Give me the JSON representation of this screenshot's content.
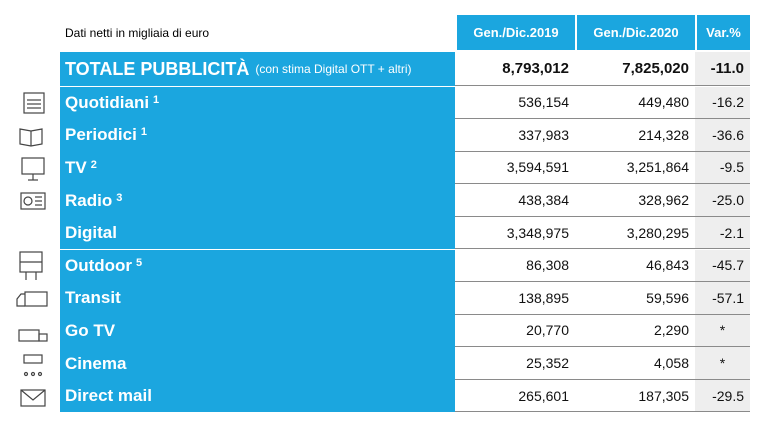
{
  "table": {
    "caption": "Dati netti in migliaia di euro",
    "columns": [
      "Gen./Dic.2019",
      "Gen./Dic.2020",
      "Var.%"
    ],
    "total": {
      "label": "TOTALE PUBBLICITÀ",
      "sublabel": "(con stima Digital OTT  + altri)",
      "values": [
        "8,793,012",
        "7,825,020",
        "-11.0"
      ]
    },
    "rows": [
      {
        "label": "Quotidiani",
        "note": "1",
        "values": [
          "536,154",
          "449,480",
          "-16.2"
        ]
      },
      {
        "label": "Periodici",
        "note": "1",
        "values": [
          "337,983",
          "214,328",
          "-36.6"
        ]
      },
      {
        "label": "TV",
        "note": "2",
        "values": [
          "3,594,591",
          "3,251,864",
          "-9.5"
        ]
      },
      {
        "label": "Radio",
        "note": "3",
        "values": [
          "438,384",
          "328,962",
          "-25.0"
        ]
      },
      {
        "label": "Digital",
        "values": [
          "3,348,975",
          "3,280,295",
          "-2.1"
        ]
      },
      {
        "label": "Outdoor",
        "note": "5",
        "values": [
          "86,308",
          "46,843",
          "-45.7"
        ]
      },
      {
        "label": "Transit",
        "values": [
          "138,895",
          "59,596",
          "-57.1"
        ]
      },
      {
        "label": "Go TV",
        "values": [
          "20,770",
          "2,290",
          "*"
        ]
      },
      {
        "label": "Cinema",
        "values": [
          "25,352",
          "4,058",
          "*"
        ]
      },
      {
        "label": "Direct mail",
        "values": [
          "265,601",
          "187,305",
          "-29.5"
        ]
      }
    ]
  }
}
